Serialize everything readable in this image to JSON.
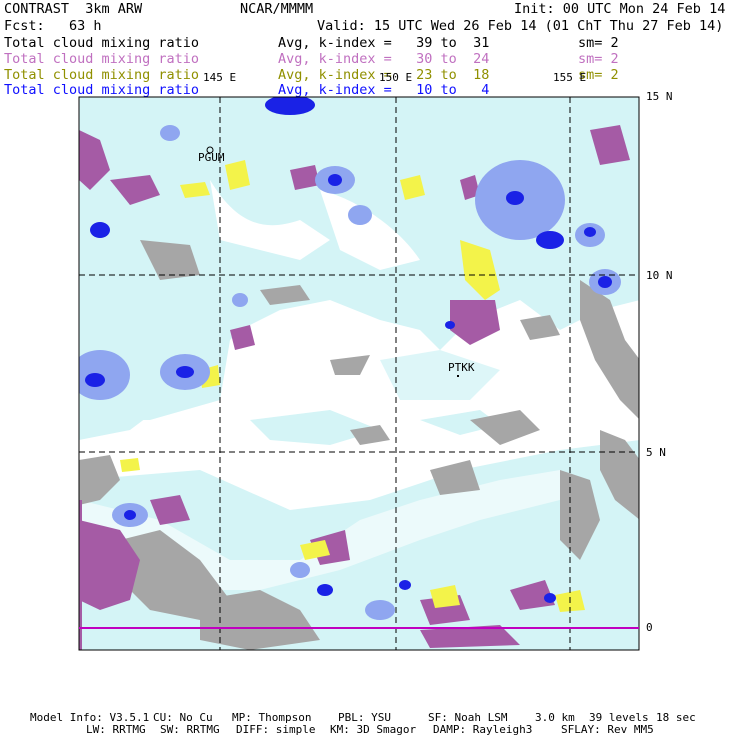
{
  "header": {
    "model": "CONTRAST  3km ARW",
    "center": "NCAR/MMMM",
    "init": "Init: 00 UTC Mon 24 Feb 14",
    "fcst": "Fcst:   63 h",
    "valid": "Valid: 15 UTC Wed 26 Feb 14 (01 ChT Thu 27 Feb 14)"
  },
  "fields": [
    {
      "name": "Total cloud mixing ratio",
      "avg": "Avg, k-index =   39 to  31",
      "sm": "sm= 2",
      "color": "#000000"
    },
    {
      "name": "Total cloud mixing ratio",
      "avg": "Avg, k-index =   30 to  24",
      "sm": "sm= 2",
      "color": "#c070c0"
    },
    {
      "name": "Total cloud mixing ratio",
      "avg": "Avg, k-index =   23 to  18",
      "sm": "sm= 2",
      "color": "#909000"
    },
    {
      "name": "Total cloud mixing ratio",
      "avg": "Avg, k-index =   10 to   4",
      "sm": "",
      "color": "#1010ff"
    }
  ],
  "map": {
    "lon_labels": [
      "145 E",
      "150 E",
      "155 E"
    ],
    "lat_labels": [
      "15 N",
      "10 N",
      "5 N",
      "0"
    ],
    "stations": [
      "PGUM",
      "PTKK"
    ],
    "colors": {
      "gray": "#a6a6a6",
      "lightblue": "#d4f4f6",
      "blue": "#8fa6f0",
      "darkblue": "#1a22e6",
      "purple": "#a55ba5",
      "yellow": "#f3f34a"
    }
  },
  "footer": {
    "line1": [
      "Model Info: V3.5.1",
      "CU: No Cu",
      "MP: Thompson",
      "PBL: YSU",
      "SF: Noah LSM",
      "3.0 km",
      "39 levels",
      "18 sec"
    ],
    "line2": [
      "LW: RRTMG",
      "SW: RRTMG",
      "DIFF: simple",
      "KM: 3D Smagor",
      "DAMP: Rayleigh3",
      "SFLAY: Rev MM5"
    ]
  }
}
